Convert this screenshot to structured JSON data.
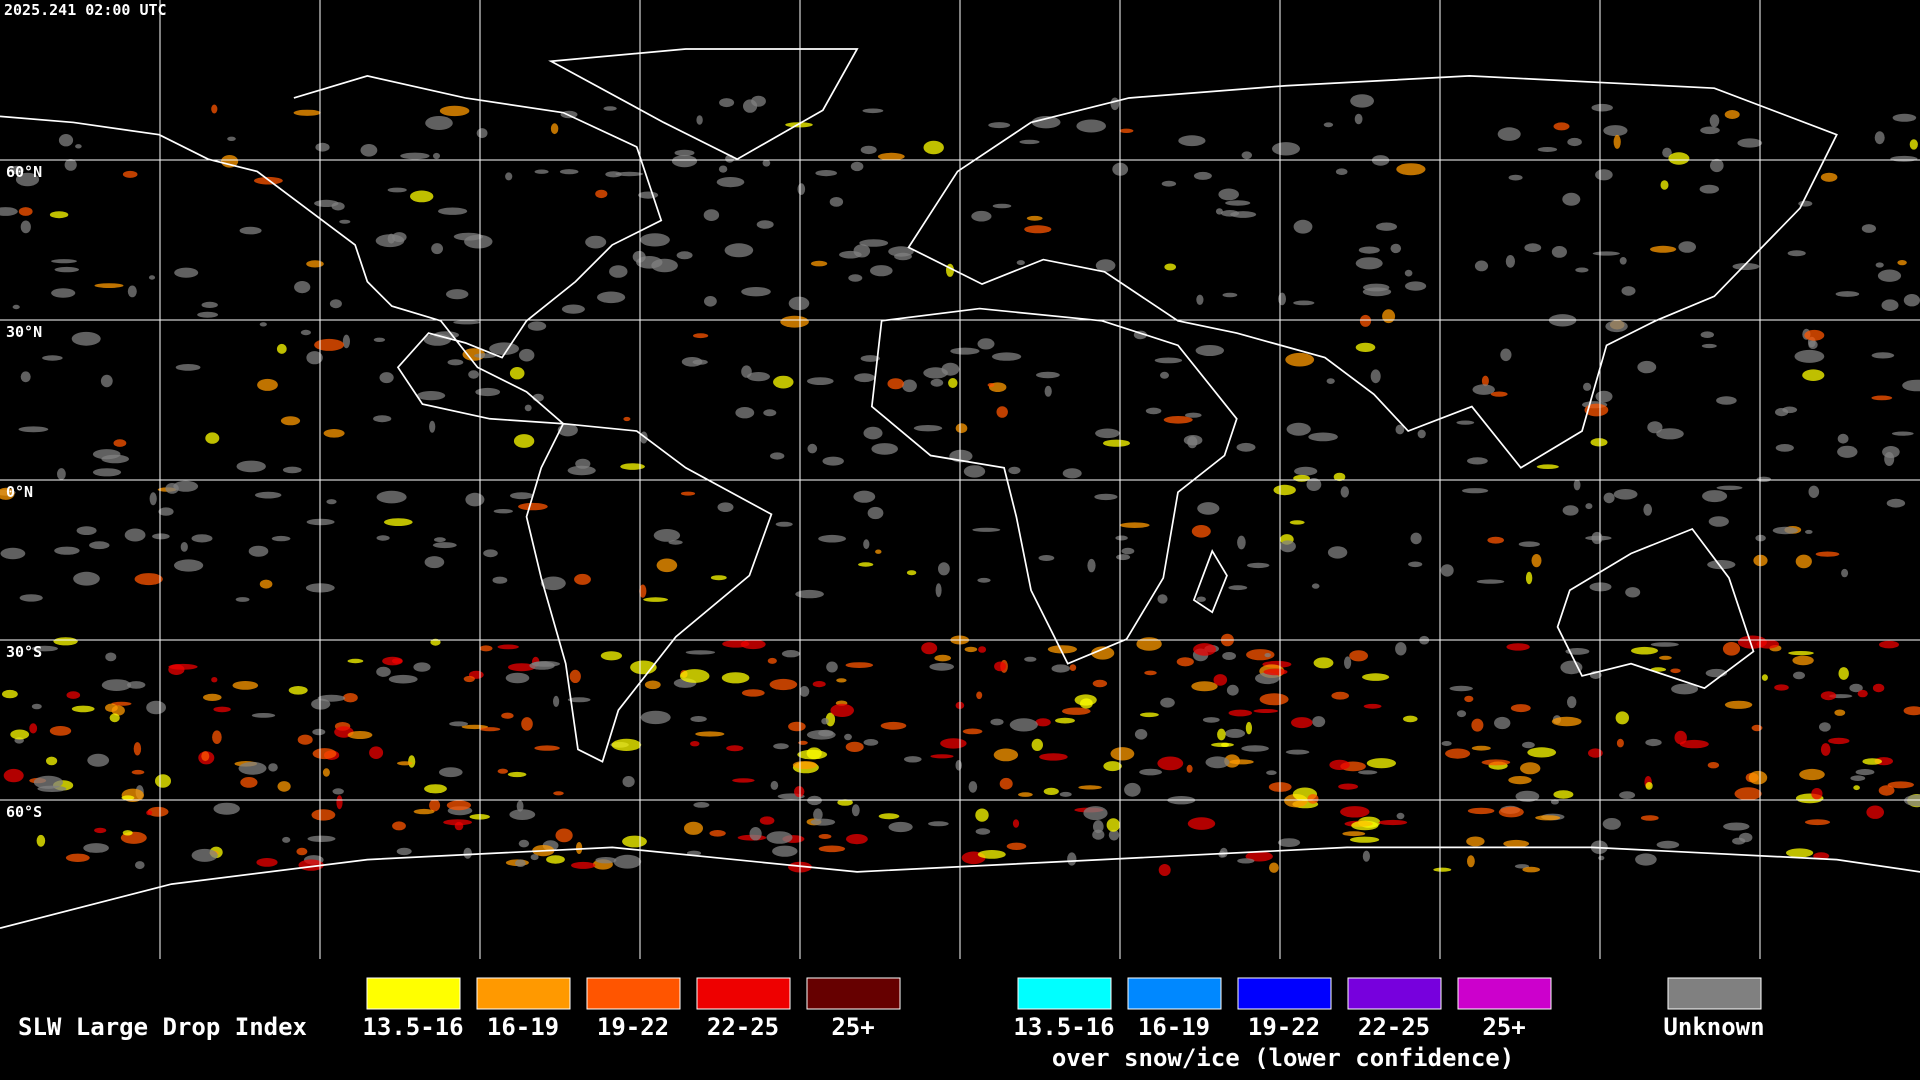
{
  "timestamp": "2025.241 02:00 UTC",
  "lat_labels": [
    "60°N",
    "30°N",
    "0°N",
    "30°S",
    "60°S"
  ],
  "legend": {
    "title": "SLW Large Drop Index",
    "liquid": [
      {
        "label": "13.5-16",
        "color": "#ffff00"
      },
      {
        "label": "16-19",
        "color": "#ff9900"
      },
      {
        "label": "19-22",
        "color": "#ff5500"
      },
      {
        "label": "22-25",
        "color": "#ee0000"
      },
      {
        "label": "25+",
        "color": "#660000"
      }
    ],
    "snow_ice": [
      {
        "label": "13.5-16",
        "color": "#00ffff"
      },
      {
        "label": "16-19",
        "color": "#0088ff"
      },
      {
        "label": "19-22",
        "color": "#0000ff"
      },
      {
        "label": "22-25",
        "color": "#7700dd"
      },
      {
        "label": "25+",
        "color": "#cc00cc"
      }
    ],
    "snow_ice_note": "over snow/ice (lower confidence)",
    "unknown": {
      "label": "Unknown",
      "color": "#808080"
    }
  }
}
